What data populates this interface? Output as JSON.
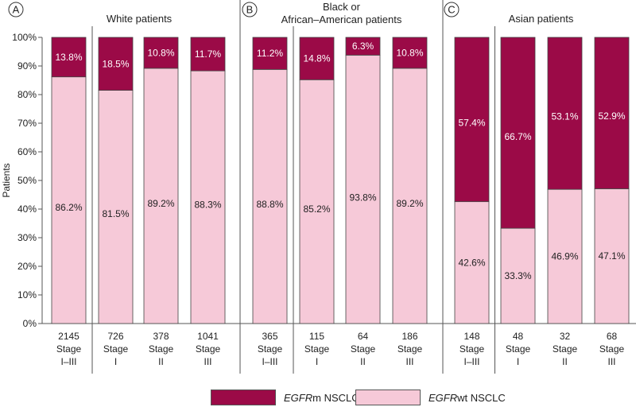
{
  "chart_data": {
    "type": "bar",
    "stacked": true,
    "ylabel": "Patients",
    "yticks": [
      "0%",
      "10%",
      "20%",
      "30%",
      "40%",
      "50%",
      "60%",
      "70%",
      "80%",
      "90%",
      "100%"
    ],
    "ylim": [
      0,
      100
    ],
    "colors": {
      "mutant": "#9b0a47",
      "wildtype": "#f6c9d8",
      "text_dark": "#222222",
      "text_light": "#ffffff"
    },
    "legend": {
      "mutant": {
        "em": "EGFR",
        "rest": "m NSCLC"
      },
      "wildtype": {
        "em": "EGFR",
        "rest": "wt NSCLC"
      }
    },
    "panels": [
      {
        "letter": "A",
        "title": [
          "White patients"
        ],
        "bars": [
          {
            "n": "2145",
            "stage_word": "Stage",
            "stage": "I–III",
            "wt": 86.2,
            "mut": 13.8,
            "wt_label": "86.2%",
            "mut_label": "13.8%"
          },
          {
            "n": "726",
            "stage_word": "Stage",
            "stage": "I",
            "wt": 81.5,
            "mut": 18.5,
            "wt_label": "81.5%",
            "mut_label": "18.5%"
          },
          {
            "n": "378",
            "stage_word": "Stage",
            "stage": "II",
            "wt": 89.2,
            "mut": 10.8,
            "wt_label": "89.2%",
            "mut_label": "10.8%"
          },
          {
            "n": "1041",
            "stage_word": "Stage",
            "stage": "III",
            "wt": 88.3,
            "mut": 11.7,
            "wt_label": "88.3%",
            "mut_label": "11.7%"
          }
        ]
      },
      {
        "letter": "B",
        "title": [
          "Black or",
          "African–American patients"
        ],
        "bars": [
          {
            "n": "365",
            "stage_word": "Stage",
            "stage": "I–III",
            "wt": 88.8,
            "mut": 11.2,
            "wt_label": "88.8%",
            "mut_label": "11.2%"
          },
          {
            "n": "115",
            "stage_word": "Stage",
            "stage": "I",
            "wt": 85.2,
            "mut": 14.8,
            "wt_label": "85.2%",
            "mut_label": "14.8%"
          },
          {
            "n": "64",
            "stage_word": "Stage",
            "stage": "II",
            "wt": 93.8,
            "mut": 6.3,
            "wt_label": "93.8%",
            "mut_label": "6.3%"
          },
          {
            "n": "186",
            "stage_word": "Stage",
            "stage": "III",
            "wt": 89.2,
            "mut": 10.8,
            "wt_label": "89.2%",
            "mut_label": "10.8%"
          }
        ]
      },
      {
        "letter": "C",
        "title": [
          "Asian patients"
        ],
        "bars": [
          {
            "n": "148",
            "stage_word": "Stage",
            "stage": "I–III",
            "wt": 42.6,
            "mut": 57.4,
            "wt_label": "42.6%",
            "mut_label": "57.4%"
          },
          {
            "n": "48",
            "stage_word": "Stage",
            "stage": "I",
            "wt": 33.3,
            "mut": 66.7,
            "wt_label": "33.3%",
            "mut_label": "66.7%"
          },
          {
            "n": "32",
            "stage_word": "Stage",
            "stage": "II",
            "wt": 46.9,
            "mut": 53.1,
            "wt_label": "46.9%",
            "mut_label": "53.1%"
          },
          {
            "n": "68",
            "stage_word": "Stage",
            "stage": "III",
            "wt": 47.1,
            "mut": 52.9,
            "wt_label": "47.1%",
            "mut_label": "52.9%"
          }
        ]
      }
    ]
  }
}
